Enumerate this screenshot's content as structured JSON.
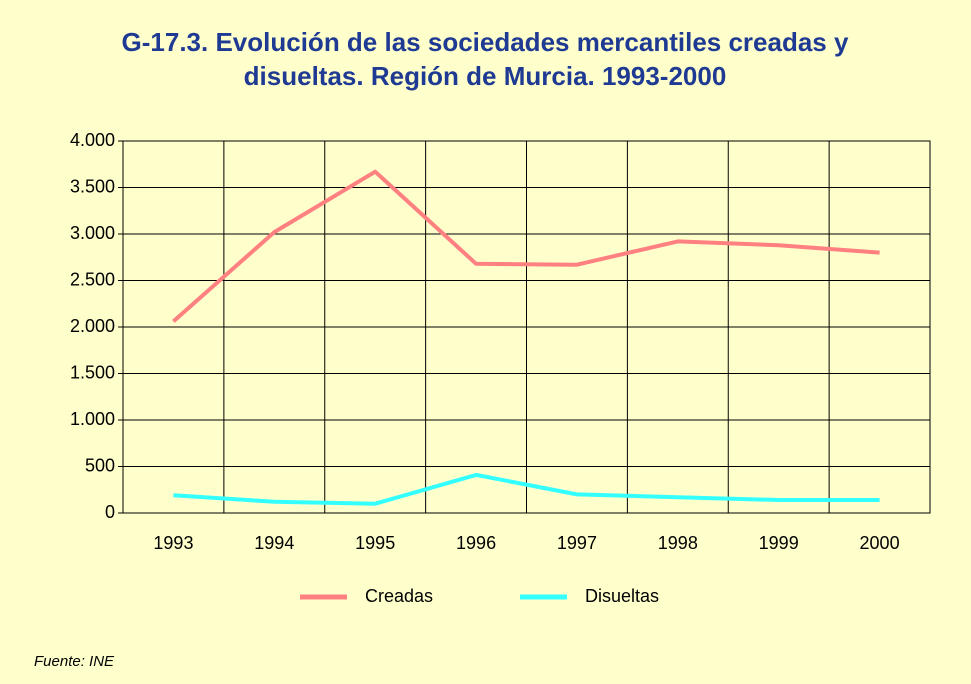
{
  "chart_data": {
    "type": "line",
    "title": [
      "G-17.3. Evolución de las sociedades mercantiles creadas y",
      "disueltas. Región de Murcia. 1993-2000"
    ],
    "categories": [
      "1993",
      "1994",
      "1995",
      "1996",
      "1997",
      "1998",
      "1999",
      "2000"
    ],
    "series": [
      {
        "name": "Creadas",
        "color": "#ff8080",
        "values": [
          2060,
          3020,
          3670,
          2680,
          2670,
          2920,
          2880,
          2800
        ]
      },
      {
        "name": "Disueltas",
        "color": "#33ffff",
        "values": [
          190,
          120,
          100,
          410,
          200,
          170,
          140,
          140
        ]
      }
    ],
    "ylim": [
      0,
      4000
    ],
    "yticks": [
      0,
      500,
      {
        "value": 1000,
        "label": "1.000"
      },
      {
        "value": 1500,
        "label": "1.500"
      },
      {
        "value": 2000,
        "label": "2.000"
      },
      {
        "value": 2500,
        "label": "2.500"
      },
      {
        "value": 3000,
        "label": "3.000"
      },
      {
        "value": 3500,
        "label": "3.500"
      },
      {
        "value": 4000,
        "label": "4.000"
      }
    ],
    "grid": true,
    "legend": "bottom",
    "source": "Fuente: INE"
  }
}
